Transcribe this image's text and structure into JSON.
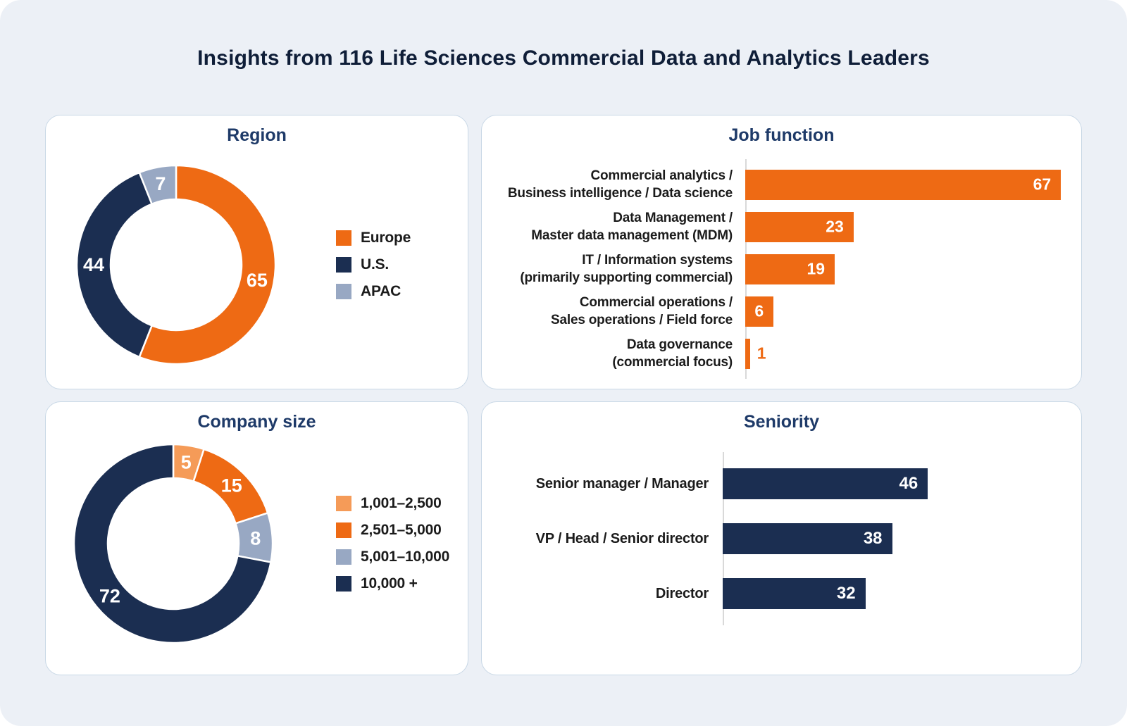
{
  "page_title": "Insights from 116 Life Sciences Commercial Data and Analytics Leaders",
  "colors": {
    "canvas_background": "#ECF0F6",
    "card_background": "#FFFFFF",
    "card_border": "#C9D8E6",
    "main_title": "#0F1E38",
    "panel_title": "#1E3A68",
    "label_text": "#1B1B1B",
    "axis_line": "#D9D9D9",
    "orange": "#EE6A14",
    "light_orange": "#F59B58",
    "navy": "#1B2E51",
    "gray_blue": "#98A8C3",
    "value_text_on_bar": "#FFFFFF"
  },
  "chart_data": [
    {
      "id": "region",
      "type": "pie",
      "subtype": "donut",
      "title": "Region",
      "total": 116,
      "legend_position": "right",
      "start_angle_deg": 0,
      "direction": "clockwise",
      "series": [
        {
          "label": "Europe",
          "value": 65,
          "color": "#EE6A14"
        },
        {
          "label": "U.S.",
          "value": 44,
          "color": "#1B2E51"
        },
        {
          "label": "APAC",
          "value": 7,
          "color": "#98A8C3"
        }
      ]
    },
    {
      "id": "job_function",
      "type": "bar",
      "orientation": "horizontal",
      "title": "Job function",
      "bar_color": "#EE6A14",
      "xlim": [
        0,
        69
      ],
      "grid": false,
      "value_labels": "inside-end (outside in orange when bar too small)",
      "categories": [
        [
          "Commercial analytics /",
          "Business intelligence / Data science"
        ],
        [
          "Data Management /",
          "Master data management (MDM)"
        ],
        [
          "IT / Information systems",
          "(primarily supporting commercial)"
        ],
        [
          "Commercial operations /",
          "Sales operations / Field force"
        ],
        [
          "Data governance",
          "(commercial focus)"
        ]
      ],
      "values": [
        67,
        23,
        19,
        6,
        1
      ]
    },
    {
      "id": "company_size",
      "type": "pie",
      "subtype": "donut",
      "title": "Company size",
      "total": 100,
      "legend_position": "right",
      "start_angle_deg": 0,
      "direction": "clockwise",
      "series": [
        {
          "label": "1,001–2,500",
          "value": 5,
          "color": "#F59B58"
        },
        {
          "label": "2,501–5,000",
          "value": 15,
          "color": "#EE6A14"
        },
        {
          "label": "5,001–10,000",
          "value": 8,
          "color": "#98A8C3"
        },
        {
          "label": "10,000 +",
          "value": 72,
          "color": "#1B2E51"
        }
      ]
    },
    {
      "id": "seniority",
      "type": "bar",
      "orientation": "horizontal",
      "title": "Seniority",
      "bar_color": "#1B2E51",
      "xlim": [
        0,
        50
      ],
      "grid": false,
      "value_labels": "inside-end",
      "categories": [
        "Senior manager / Manager",
        "VP / Head / Senior director",
        "Director"
      ],
      "values": [
        46,
        38,
        32
      ]
    }
  ]
}
